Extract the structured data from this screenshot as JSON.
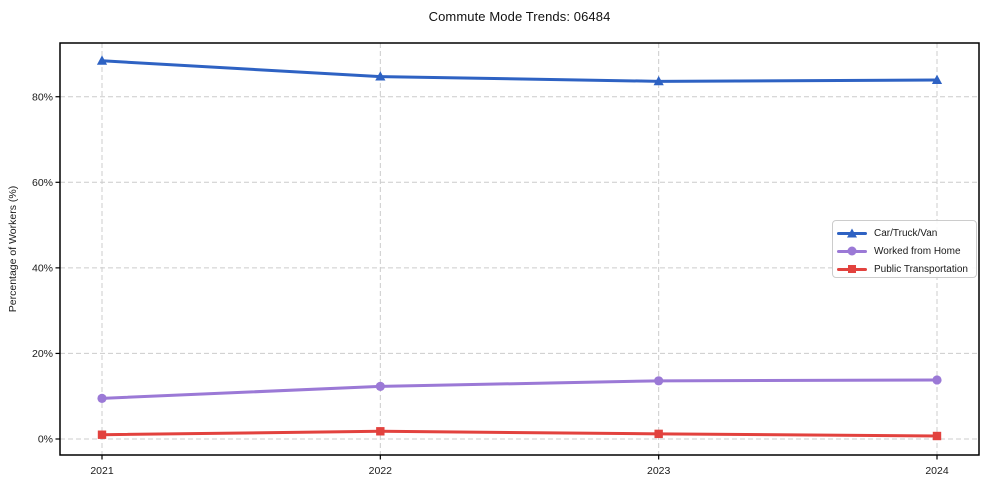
{
  "title": "Commute Mode Trends: 06484",
  "colors": {
    "car_truck_van": "#2e62c3",
    "worked_from_home": "#9b79d6",
    "public_transportation": "#e2423e",
    "grid": "#cccccc",
    "axis": "#000000",
    "text": "#1a1a1a"
  },
  "chart_data": {
    "type": "line",
    "title": "Commute Mode Trends: 06484",
    "xlabel": "",
    "ylabel": "Percentage of Workers (%)",
    "x": [
      2021,
      2022,
      2023,
      2024
    ],
    "xticklabels": [
      "2021",
      "2022",
      "2023",
      "2024"
    ],
    "ytick_values": [
      0,
      20,
      40,
      60,
      80
    ],
    "yticklabels": [
      "0%",
      "20%",
      "40%",
      "60%",
      "80%"
    ],
    "ylim": [
      -3.74,
      92.56
    ],
    "grid": true,
    "grid_style": "dashed",
    "legend_position": "center-right",
    "series": [
      {
        "name": "Car/Truck/Van",
        "marker": "triangle",
        "color": "#2e62c3",
        "values": [
          88.4,
          84.7,
          83.6,
          83.9
        ]
      },
      {
        "name": "Worked from Home",
        "marker": "circle",
        "color": "#9b79d6",
        "values": [
          9.5,
          12.3,
          13.6,
          13.8
        ]
      },
      {
        "name": "Public Transportation",
        "marker": "square",
        "color": "#e2423e",
        "values": [
          1.0,
          1.8,
          1.2,
          0.7
        ]
      }
    ]
  }
}
